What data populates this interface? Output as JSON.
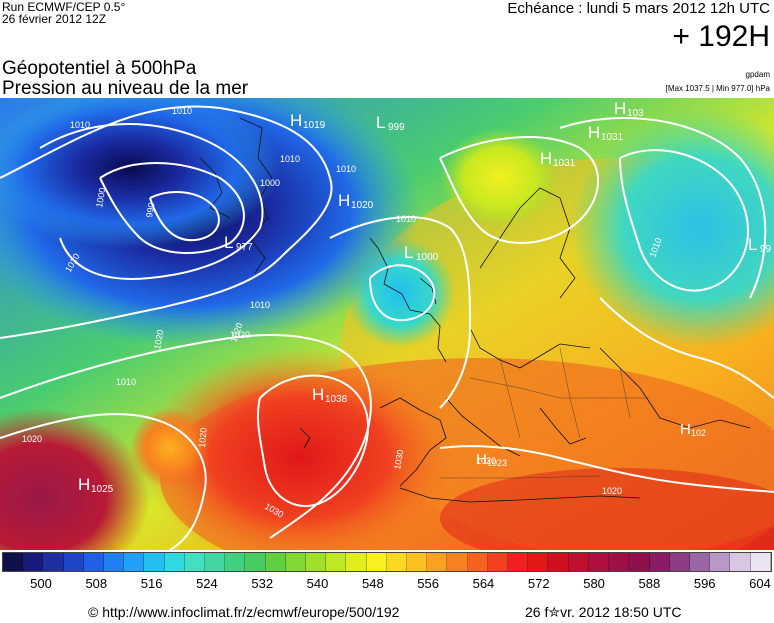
{
  "header": {
    "run_line1": "Run ECMWF/CEP 0.5°",
    "run_line2": "26 février 2012 12Z",
    "echeance": "Echéance : lundi 5 mars 2012 12h UTC",
    "horizon": "+ 192H",
    "title_line1": "Géopotentiel à 500hPa",
    "title_line2": "Pression au niveau de la mer",
    "credit": "gpdam",
    "maxmin": "[Max 1037.5 | Min 977.0] hPa"
  },
  "map": {
    "pressure_centers": [
      {
        "type": "H",
        "value": "1019"
      },
      {
        "type": "L",
        "value": "999"
      },
      {
        "type": "H",
        "value": "103"
      },
      {
        "type": "H",
        "value": "1031"
      },
      {
        "type": "H",
        "value": "1031"
      },
      {
        "type": "L",
        "value": "99"
      },
      {
        "type": "H",
        "value": "1020"
      },
      {
        "type": "L",
        "value": "977"
      },
      {
        "type": "L",
        "value": "1000"
      },
      {
        "type": "H",
        "value": "1038"
      },
      {
        "type": "H",
        "value": "1025"
      },
      {
        "type": "H",
        "value": "1023"
      },
      {
        "type": "H",
        "value": "102"
      }
    ],
    "isobar_labels": [
      "1010",
      "1010",
      "1000",
      "990",
      "1010",
      "1010",
      "1000",
      "1010",
      "1010",
      "1010",
      "1020",
      "1010",
      "1020",
      "1020",
      "1030",
      "1020",
      "1010",
      "1020",
      "1030",
      "1020",
      "1020"
    ]
  },
  "colorbar": {
    "ticks": [
      "500",
      "508",
      "516",
      "524",
      "532",
      "540",
      "548",
      "556",
      "564",
      "572",
      "580",
      "588",
      "596",
      "604"
    ],
    "colors": [
      "#10104a",
      "#1a1a7a",
      "#1f2fa0",
      "#1f44c8",
      "#2060e6",
      "#2280f5",
      "#20a0f8",
      "#22c0f0",
      "#30d8e0",
      "#40e0c0",
      "#40d8a0",
      "#40d080",
      "#48cc60",
      "#60d040",
      "#80d830",
      "#a0e028",
      "#c0e820",
      "#e0ee20",
      "#f8f020",
      "#fad820",
      "#fcc020",
      "#fca020",
      "#fb8020",
      "#f86020",
      "#f44020",
      "#ee2020",
      "#e01818",
      "#d01020",
      "#c01030",
      "#b01040",
      "#a01048",
      "#90104e",
      "#8a1c66",
      "#8a3c86",
      "#9a66a6",
      "#b898c6",
      "#d8c6e2",
      "#ece4f2"
    ]
  },
  "footer": {
    "url": "© http://www.infoclimat.fr/z/ecmwf/europe/500/192",
    "date": "26 f✮vr. 2012 18:50 UTC"
  }
}
